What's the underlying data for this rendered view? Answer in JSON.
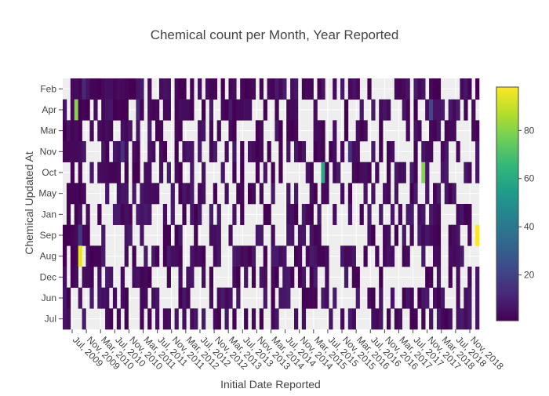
{
  "chart_data": {
    "type": "heatmap",
    "title": "Chemical count per Month, Year Reported",
    "xlabel": "Initial Date Reported",
    "ylabel": "Chemical Updated At",
    "x_tick_labels": [
      "Jul, 2009",
      "Nov, 2009",
      "Mar, 2010",
      "Jul, 2010",
      "Nov, 2010",
      "Mar, 2011",
      "Jul, 2011",
      "Nov, 2011",
      "Mar, 2012",
      "Jul, 2012",
      "Nov, 2012",
      "Mar, 2013",
      "Jul, 2013",
      "Nov, 2013",
      "Mar, 2014",
      "Jul, 2014",
      "Nov, 2014",
      "Mar, 2015",
      "Jul, 2015",
      "Nov, 2015",
      "Mar, 2016",
      "Jul, 2016",
      "Nov, 2016",
      "Mar, 2017",
      "Jul, 2017",
      "Nov, 2017",
      "Mar, 2018",
      "Jul, 2018",
      "Nov, 2018"
    ],
    "y_categories": [
      "Feb",
      "Apr",
      "Mar",
      "Nov",
      "Oct",
      "May",
      "Jan",
      "Sep",
      "Aug",
      "Dec",
      "Jun",
      "Jul"
    ],
    "colorscale": "viridis",
    "color_range": [
      1,
      98
    ],
    "colorbar_ticks": [
      20,
      40,
      60,
      80
    ],
    "plot_background": "#eeeeee",
    "grid": true,
    "cell_values": {
      "Feb": [
        0,
        0,
        3,
        4,
        2,
        12,
        6,
        2,
        0,
        1,
        3,
        5,
        0,
        2,
        4,
        3,
        2,
        1,
        1,
        6,
        0,
        0,
        0,
        0,
        0,
        0,
        0,
        0,
        0,
        3,
        0,
        1,
        0,
        2,
        0,
        0,
        0,
        0,
        2,
        2,
        0,
        1,
        0,
        0,
        4,
        0,
        3,
        1,
        0,
        3,
        0,
        0,
        0,
        0,
        2,
        0,
        3,
        0,
        0,
        0,
        0,
        0,
        2,
        3,
        0,
        0,
        0,
        0,
        0,
        0,
        0,
        0,
        0,
        0,
        0,
        0,
        0,
        0,
        0,
        1,
        0,
        0,
        0,
        0,
        0,
        0,
        0,
        0,
        3,
        0,
        0,
        0,
        0,
        6,
        0,
        3,
        1,
        0,
        0,
        0,
        0,
        0,
        0,
        3,
        0,
        2,
        0,
        0
      ],
      "Apr": [
        0,
        0,
        2,
        80,
        1,
        2,
        1,
        0,
        4,
        0,
        3,
        6,
        0,
        1,
        2,
        0,
        0,
        0,
        0,
        12,
        2,
        0,
        0,
        2,
        0,
        0,
        0,
        0,
        0,
        0,
        0,
        0,
        0,
        0,
        0,
        0,
        1,
        0,
        0,
        0,
        0,
        0,
        1,
        0,
        0,
        0,
        3,
        0,
        0,
        0,
        0,
        0,
        0,
        0,
        0,
        2,
        0,
        0,
        2,
        3,
        4,
        0,
        0,
        0,
        0,
        0,
        0,
        0,
        0,
        0,
        0,
        0,
        0,
        0,
        0,
        0,
        0,
        0,
        0,
        0,
        0,
        0,
        4,
        6,
        0,
        0,
        0,
        0,
        0,
        0,
        0,
        0,
        0,
        0,
        0,
        22,
        0,
        0,
        0,
        0,
        0,
        0,
        0,
        0,
        0,
        0,
        0,
        0
      ],
      "Mar": [
        0,
        0,
        2,
        4,
        1,
        0,
        0,
        3,
        0,
        0,
        2,
        0,
        0,
        0,
        0,
        0,
        0,
        0,
        0,
        0,
        0,
        0,
        0,
        0,
        0,
        0,
        0,
        0,
        0,
        0,
        0,
        0,
        0,
        0,
        0,
        0,
        0,
        0,
        3,
        0,
        0,
        0,
        0,
        0,
        1,
        0,
        0,
        0,
        0,
        0,
        0,
        0,
        0,
        0,
        0,
        0,
        0,
        0,
        0,
        0,
        0,
        0,
        0,
        0,
        0,
        0,
        0,
        0,
        0,
        0,
        0,
        0,
        0,
        0,
        0,
        0,
        0,
        0,
        0,
        0,
        0,
        0,
        0,
        0,
        0,
        0,
        0,
        0,
        0,
        0,
        0,
        0,
        0,
        0,
        0,
        3,
        2,
        0,
        0,
        0,
        0,
        0,
        0,
        0,
        0,
        0,
        0,
        0
      ],
      "Nov": [
        0,
        0,
        3,
        3,
        0,
        0,
        0,
        0,
        0,
        0,
        0,
        1,
        0,
        0,
        0,
        15,
        0,
        0,
        0,
        0,
        0,
        0,
        0,
        0,
        0,
        0,
        0,
        0,
        0,
        0,
        0,
        0,
        0,
        0,
        0,
        0,
        0,
        0,
        0,
        0,
        0,
        0,
        0,
        0,
        0,
        0,
        2,
        0,
        0,
        0,
        0,
        3,
        0,
        0,
        0,
        0,
        0,
        0,
        0,
        0,
        0,
        0,
        0,
        0,
        0,
        0,
        0,
        2,
        0,
        0,
        0,
        0,
        0,
        0,
        15,
        0,
        0,
        0,
        0,
        0,
        0,
        0,
        2,
        0,
        0,
        0,
        0,
        0,
        0,
        0,
        0,
        0,
        0,
        0,
        0,
        0,
        0,
        0,
        0,
        0,
        0,
        0,
        0,
        0,
        0,
        0,
        0,
        0
      ],
      "Oct": [
        0,
        0,
        2,
        0,
        2,
        0,
        0,
        0,
        0,
        0,
        0,
        0,
        0,
        0,
        0,
        0,
        0,
        0,
        0,
        0,
        0,
        0,
        0,
        0,
        0,
        0,
        0,
        0,
        0,
        0,
        0,
        0,
        0,
        0,
        0,
        0,
        0,
        0,
        0,
        0,
        0,
        0,
        0,
        0,
        2,
        0,
        0,
        0,
        0,
        0,
        0,
        0,
        0,
        0,
        0,
        0,
        0,
        0,
        0,
        0,
        0,
        0,
        0,
        0,
        0,
        0,
        0,
        60,
        0,
        0,
        0,
        0,
        0,
        0,
        0,
        0,
        0,
        0,
        0,
        0,
        0,
        0,
        0,
        0,
        0,
        0,
        0,
        0,
        0,
        0,
        0,
        0,
        0,
        80,
        0,
        0,
        0,
        0,
        0,
        0,
        0,
        0,
        0,
        0,
        0,
        0,
        0,
        0
      ],
      "May": [
        0,
        0,
        2,
        2,
        1,
        0,
        0,
        0,
        0,
        0,
        0,
        0,
        0,
        0,
        0,
        0,
        0,
        0,
        0,
        0,
        0,
        0,
        0,
        0,
        0,
        0,
        0,
        0,
        0,
        0,
        0,
        0,
        0,
        0,
        0,
        0,
        0,
        0,
        0,
        0,
        0,
        0,
        0,
        0,
        0,
        0,
        0,
        0,
        0,
        0,
        0,
        0,
        0,
        0,
        0,
        0,
        0,
        0,
        0,
        0,
        0,
        0,
        0,
        0,
        0,
        0,
        0,
        0,
        0,
        0,
        0,
        0,
        0,
        0,
        0,
        0,
        0,
        0,
        0,
        0,
        0,
        0,
        0,
        0,
        0,
        0,
        0,
        0,
        0,
        0,
        0,
        0,
        0,
        0,
        0,
        0,
        0,
        0,
        0,
        0,
        0,
        0,
        0,
        0,
        0,
        0,
        0,
        0
      ],
      "Jan": [
        0,
        2,
        0,
        1,
        0,
        0,
        0,
        0,
        0,
        0,
        0,
        0,
        0,
        0,
        0,
        0,
        0,
        0,
        0,
        0,
        0,
        0,
        0,
        0,
        0,
        0,
        0,
        0,
        0,
        0,
        0,
        0,
        0,
        0,
        0,
        0,
        0,
        0,
        0,
        0,
        0,
        0,
        0,
        0,
        0,
        0,
        0,
        0,
        0,
        0,
        0,
        0,
        0,
        0,
        0,
        0,
        0,
        0,
        0,
        0,
        0,
        0,
        0,
        0,
        0,
        0,
        0,
        0,
        0,
        0,
        0,
        0,
        0,
        0,
        0,
        0,
        0,
        0,
        0,
        0,
        0,
        0,
        0,
        0,
        0,
        0,
        0,
        0,
        0,
        0,
        0,
        0,
        0,
        0,
        0,
        0,
        0,
        0,
        0,
        0,
        0,
        0,
        0,
        0,
        0,
        0,
        0,
        0
      ],
      "Sep": [
        0,
        0,
        2,
        4,
        18,
        0,
        0,
        0,
        0,
        0,
        0,
        0,
        0,
        0,
        0,
        0,
        0,
        0,
        0,
        0,
        0,
        0,
        0,
        0,
        0,
        0,
        0,
        0,
        0,
        0,
        0,
        0,
        0,
        0,
        0,
        0,
        0,
        0,
        0,
        0,
        0,
        0,
        0,
        0,
        0,
        0,
        0,
        0,
        0,
        0,
        0,
        0,
        0,
        0,
        0,
        0,
        0,
        0,
        0,
        0,
        0,
        0,
        0,
        0,
        0,
        0,
        0,
        0,
        0,
        0,
        0,
        0,
        0,
        0,
        0,
        0,
        0,
        0,
        0,
        0,
        0,
        0,
        0,
        0,
        0,
        0,
        0,
        0,
        0,
        0,
        0,
        0,
        0,
        0,
        0,
        0,
        0,
        0,
        0,
        0,
        0,
        0,
        0,
        0,
        0,
        0,
        0,
        98
      ],
      "Aug": [
        0,
        0,
        1,
        2,
        95,
        0,
        0,
        0,
        0,
        0,
        0,
        0,
        0,
        0,
        0,
        0,
        0,
        0,
        0,
        0,
        0,
        0,
        0,
        0,
        0,
        0,
        0,
        0,
        0,
        0,
        0,
        0,
        0,
        0,
        0,
        0,
        0,
        0,
        0,
        0,
        0,
        0,
        0,
        0,
        0,
        0,
        0,
        0,
        0,
        0,
        0,
        0,
        0,
        0,
        0,
        0,
        0,
        0,
        0,
        0,
        0,
        0,
        0,
        0,
        0,
        0,
        0,
        0,
        0,
        0,
        0,
        0,
        0,
        0,
        0,
        0,
        0,
        0,
        0,
        0,
        0,
        0,
        0,
        0,
        0,
        0,
        0,
        0,
        0,
        0,
        0,
        0,
        0,
        0,
        0,
        0,
        0,
        0,
        0,
        0,
        0,
        0,
        0,
        0,
        0,
        0,
        0,
        0
      ],
      "Dec": [
        0,
        0,
        2,
        0,
        0,
        0,
        0,
        0,
        0,
        0,
        0,
        0,
        0,
        0,
        0,
        0,
        0,
        0,
        0,
        0,
        0,
        0,
        0,
        0,
        0,
        0,
        0,
        0,
        0,
        0,
        0,
        0,
        0,
        0,
        0,
        0,
        0,
        0,
        0,
        0,
        0,
        0,
        0,
        0,
        0,
        0,
        0,
        0,
        0,
        0,
        0,
        0,
        0,
        0,
        0,
        0,
        0,
        0,
        0,
        0,
        0,
        0,
        0,
        0,
        0,
        0,
        0,
        0,
        0,
        0,
        0,
        0,
        0,
        0,
        0,
        0,
        0,
        0,
        0,
        0,
        0,
        0,
        0,
        0,
        0,
        0,
        0,
        0,
        0,
        0,
        0,
        0,
        0,
        0,
        0,
        0,
        0,
        0,
        0,
        0,
        0,
        0,
        0,
        0,
        0,
        0,
        0,
        0
      ],
      "Jun": [
        0,
        0,
        0,
        0,
        0,
        0,
        0,
        0,
        0,
        0,
        0,
        0,
        0,
        0,
        0,
        0,
        0,
        0,
        0,
        0,
        0,
        0,
        0,
        0,
        0,
        0,
        0,
        0,
        0,
        0,
        0,
        0,
        0,
        0,
        0,
        0,
        0,
        0,
        0,
        0,
        0,
        0,
        0,
        0,
        0,
        0,
        0,
        0,
        0,
        0,
        0,
        0,
        0,
        0,
        0,
        0,
        0,
        0,
        0,
        0,
        0,
        0,
        0,
        0,
        0,
        0,
        0,
        0,
        0,
        0,
        0,
        0,
        0,
        0,
        0,
        0,
        0,
        0,
        0,
        0,
        0,
        0,
        0,
        0,
        0,
        0,
        0,
        0,
        0,
        0,
        0,
        0,
        0,
        0,
        0,
        0,
        0,
        0,
        0,
        0,
        0,
        0,
        0,
        0,
        0,
        0,
        0,
        0
      ],
      "Jul": [
        0,
        0,
        0,
        0,
        0,
        0,
        0,
        0,
        0,
        0,
        0,
        0,
        0,
        0,
        0,
        0,
        0,
        0,
        0,
        0,
        0,
        0,
        0,
        0,
        0,
        0,
        0,
        0,
        0,
        0,
        0,
        0,
        0,
        0,
        0,
        0,
        0,
        0,
        0,
        0,
        0,
        0,
        0,
        0,
        0,
        0,
        0,
        0,
        0,
        0,
        0,
        0,
        0,
        0,
        0,
        0,
        0,
        0,
        0,
        0,
        0,
        0,
        0,
        0,
        0,
        0,
        0,
        0,
        0,
        0,
        0,
        0,
        0,
        0,
        0,
        0,
        0,
        0,
        0,
        0,
        0,
        0,
        0,
        0,
        0,
        0,
        0,
        0,
        0,
        0,
        0,
        0,
        0,
        0,
        0,
        0,
        0,
        0,
        0,
        0,
        0,
        0,
        0,
        0,
        0,
        0,
        0,
        0
      ]
    }
  }
}
